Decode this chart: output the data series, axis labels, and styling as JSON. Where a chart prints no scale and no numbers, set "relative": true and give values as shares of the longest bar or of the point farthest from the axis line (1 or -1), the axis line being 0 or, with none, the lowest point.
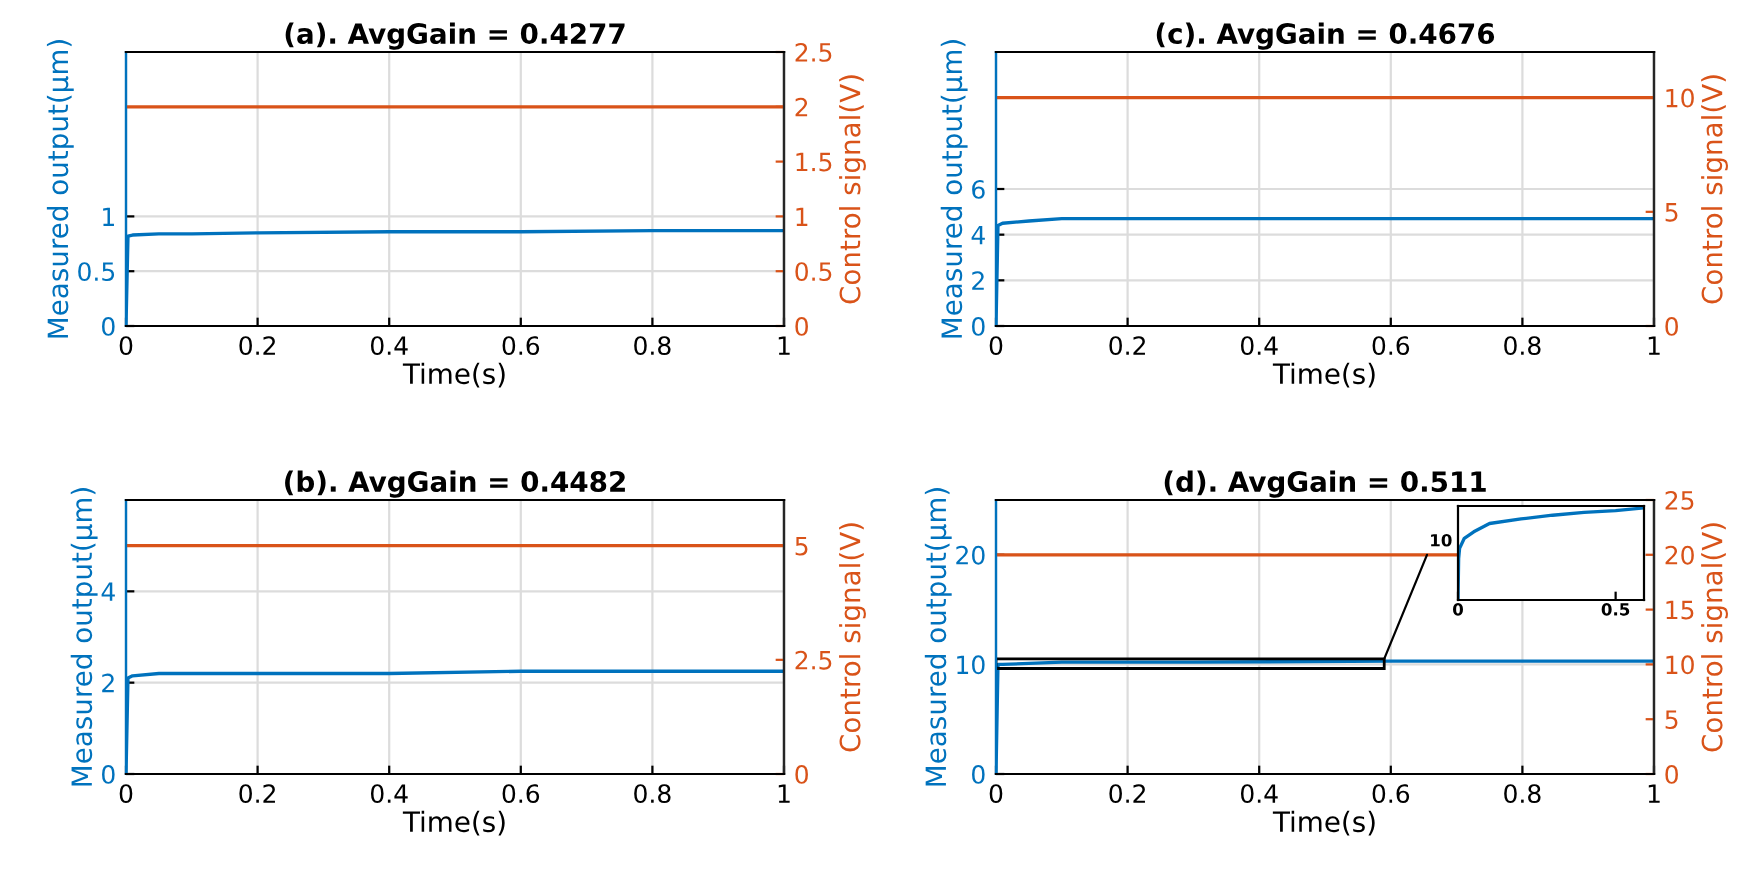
{
  "chart_data": [
    {
      "type": "line",
      "title": "(a). AvgGain = 0.4277",
      "xlabel": "Time(s)",
      "ylabel": "Measured output(μm)",
      "y2label": "Control signal(V)",
      "xlim": [
        0,
        1
      ],
      "xticks": [
        0,
        0.2,
        0.4,
        0.6,
        0.8,
        1
      ],
      "ylim": [
        0,
        2.5
      ],
      "yticks": [
        0,
        0.5,
        1
      ],
      "y2lim": [
        0,
        2.5
      ],
      "y2ticks": [
        0,
        0.5,
        1,
        1.5,
        2,
        2.5
      ],
      "grid": true,
      "series": [
        {
          "color": "#0072bd",
          "x": [
            0,
            0.003,
            0.01,
            0.05,
            0.1,
            0.2,
            0.4,
            0.6,
            0.8,
            1
          ],
          "values": [
            0,
            0.82,
            0.83,
            0.84,
            0.84,
            0.85,
            0.86,
            0.86,
            0.87,
            0.87
          ]
        },
        {
          "color": "#d95319",
          "axis": "y2",
          "x": [
            0,
            1
          ],
          "values": [
            2,
            2
          ]
        }
      ]
    },
    {
      "type": "line",
      "title": "(c). AvgGain = 0.4676",
      "xlabel": "Time(s)",
      "ylabel": "Measured output(μm)",
      "y2label": "Control signal(V)",
      "xlim": [
        0,
        1
      ],
      "xticks": [
        0,
        0.2,
        0.4,
        0.6,
        0.8,
        1
      ],
      "ylim": [
        0,
        12
      ],
      "yticks": [
        0,
        2,
        4,
        6
      ],
      "y2lim": [
        0,
        12
      ],
      "y2ticks": [
        0,
        5,
        10
      ],
      "grid": true,
      "series": [
        {
          "color": "#0072bd",
          "x": [
            0,
            0.003,
            0.01,
            0.05,
            0.1,
            0.2,
            0.4,
            0.6,
            0.8,
            1
          ],
          "values": [
            0,
            4.4,
            4.5,
            4.6,
            4.7,
            4.7,
            4.7,
            4.7,
            4.7,
            4.7
          ]
        },
        {
          "color": "#d95319",
          "axis": "y2",
          "x": [
            0,
            1
          ],
          "values": [
            10,
            10
          ]
        }
      ]
    },
    {
      "type": "line",
      "title": "(b). AvgGain = 0.4482",
      "xlabel": "Time(s)",
      "ylabel": "Measured output(μm)",
      "y2label": "Control signal(V)",
      "xlim": [
        0,
        1
      ],
      "xticks": [
        0,
        0.2,
        0.4,
        0.6,
        0.8,
        1
      ],
      "ylim": [
        0,
        6
      ],
      "yticks": [
        0,
        2,
        4
      ],
      "y2lim": [
        0,
        6
      ],
      "y2ticks": [
        0,
        2.5,
        5
      ],
      "grid": true,
      "series": [
        {
          "color": "#0072bd",
          "x": [
            0,
            0.003,
            0.01,
            0.05,
            0.1,
            0.2,
            0.4,
            0.6,
            0.8,
            1
          ],
          "values": [
            0,
            2.1,
            2.15,
            2.2,
            2.2,
            2.2,
            2.2,
            2.25,
            2.25,
            2.25
          ]
        },
        {
          "color": "#d95319",
          "axis": "y2",
          "x": [
            0,
            1
          ],
          "values": [
            5,
            5
          ]
        }
      ]
    },
    {
      "type": "line",
      "title": "(d). AvgGain = 0.511",
      "xlabel": "Time(s)",
      "ylabel": "Measured output(μm)",
      "y2label": "Control signal(V)",
      "xlim": [
        0,
        1
      ],
      "xticks": [
        0,
        0.2,
        0.4,
        0.6,
        0.8,
        1
      ],
      "ylim": [
        0,
        25
      ],
      "yticks": [
        0,
        10,
        20
      ],
      "y2lim": [
        0,
        25
      ],
      "y2ticks": [
        0,
        5,
        10,
        15,
        20,
        25
      ],
      "grid": true,
      "series": [
        {
          "color": "#0072bd",
          "x": [
            0,
            0.003,
            0.01,
            0.1,
            0.3,
            0.6,
            1
          ],
          "values": [
            0,
            10,
            10,
            10.2,
            10.2,
            10.3,
            10.3
          ]
        },
        {
          "color": "#d95319",
          "axis": "y2",
          "x": [
            0,
            0.7
          ],
          "values": [
            20,
            20
          ]
        }
      ]
    },
    {
      "type": "line",
      "relative": true,
      "xlim": [
        0,
        0.59
      ],
      "xticks": [
        0,
        0.5
      ],
      "annotations": [
        "10"
      ],
      "series": [
        {
          "color": "#0072bd",
          "x": [
            0,
            0.002,
            0.005,
            0.02,
            0.05,
            0.1,
            0.2,
            0.3,
            0.4,
            0.5,
            0.59
          ],
          "values": [
            0,
            0.45,
            0.56,
            0.67,
            0.74,
            0.83,
            0.88,
            0.92,
            0.95,
            0.97,
            1
          ]
        }
      ]
    }
  ]
}
